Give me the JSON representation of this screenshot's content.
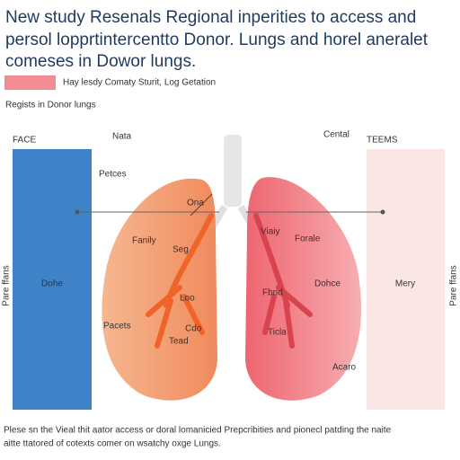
{
  "header": {
    "title_lines": [
      "New study Resenals Regional inperities to access and",
      "persol lopprtintercentto Donor. Lungs and horel aneralet",
      "comeses in Dowor lungs."
    ],
    "legend": "Hay lesdy Comaty Sturit, Log Getation",
    "subtitle": "Regists in Donor lungs"
  },
  "panels": {
    "left": {
      "header": "FACE",
      "label": "Dohe",
      "side_label": "Pare ffans"
    },
    "right": {
      "header": "TEEMS",
      "label": "Mery",
      "side_label": "Pare ffans"
    }
  },
  "top_labels": {
    "left": "Nata",
    "right": "Cental",
    "pointer": "Petces"
  },
  "left_lung": [
    "Ona",
    "Fanily",
    "Seg",
    "Loo",
    "Cdo",
    "Pacets",
    "Tead"
  ],
  "right_lung": [
    "Viaiy",
    "Forale",
    "Fbnd",
    "Dohce",
    "Ticla",
    "Acaro"
  ],
  "footer": [
    "Plese sn the Vieal thit aator access or doral lomanicied Prepcribities and pionecl patding the naite",
    "aitte ttatored of cotexts comer on wsatchy oxge Lungs."
  ]
}
